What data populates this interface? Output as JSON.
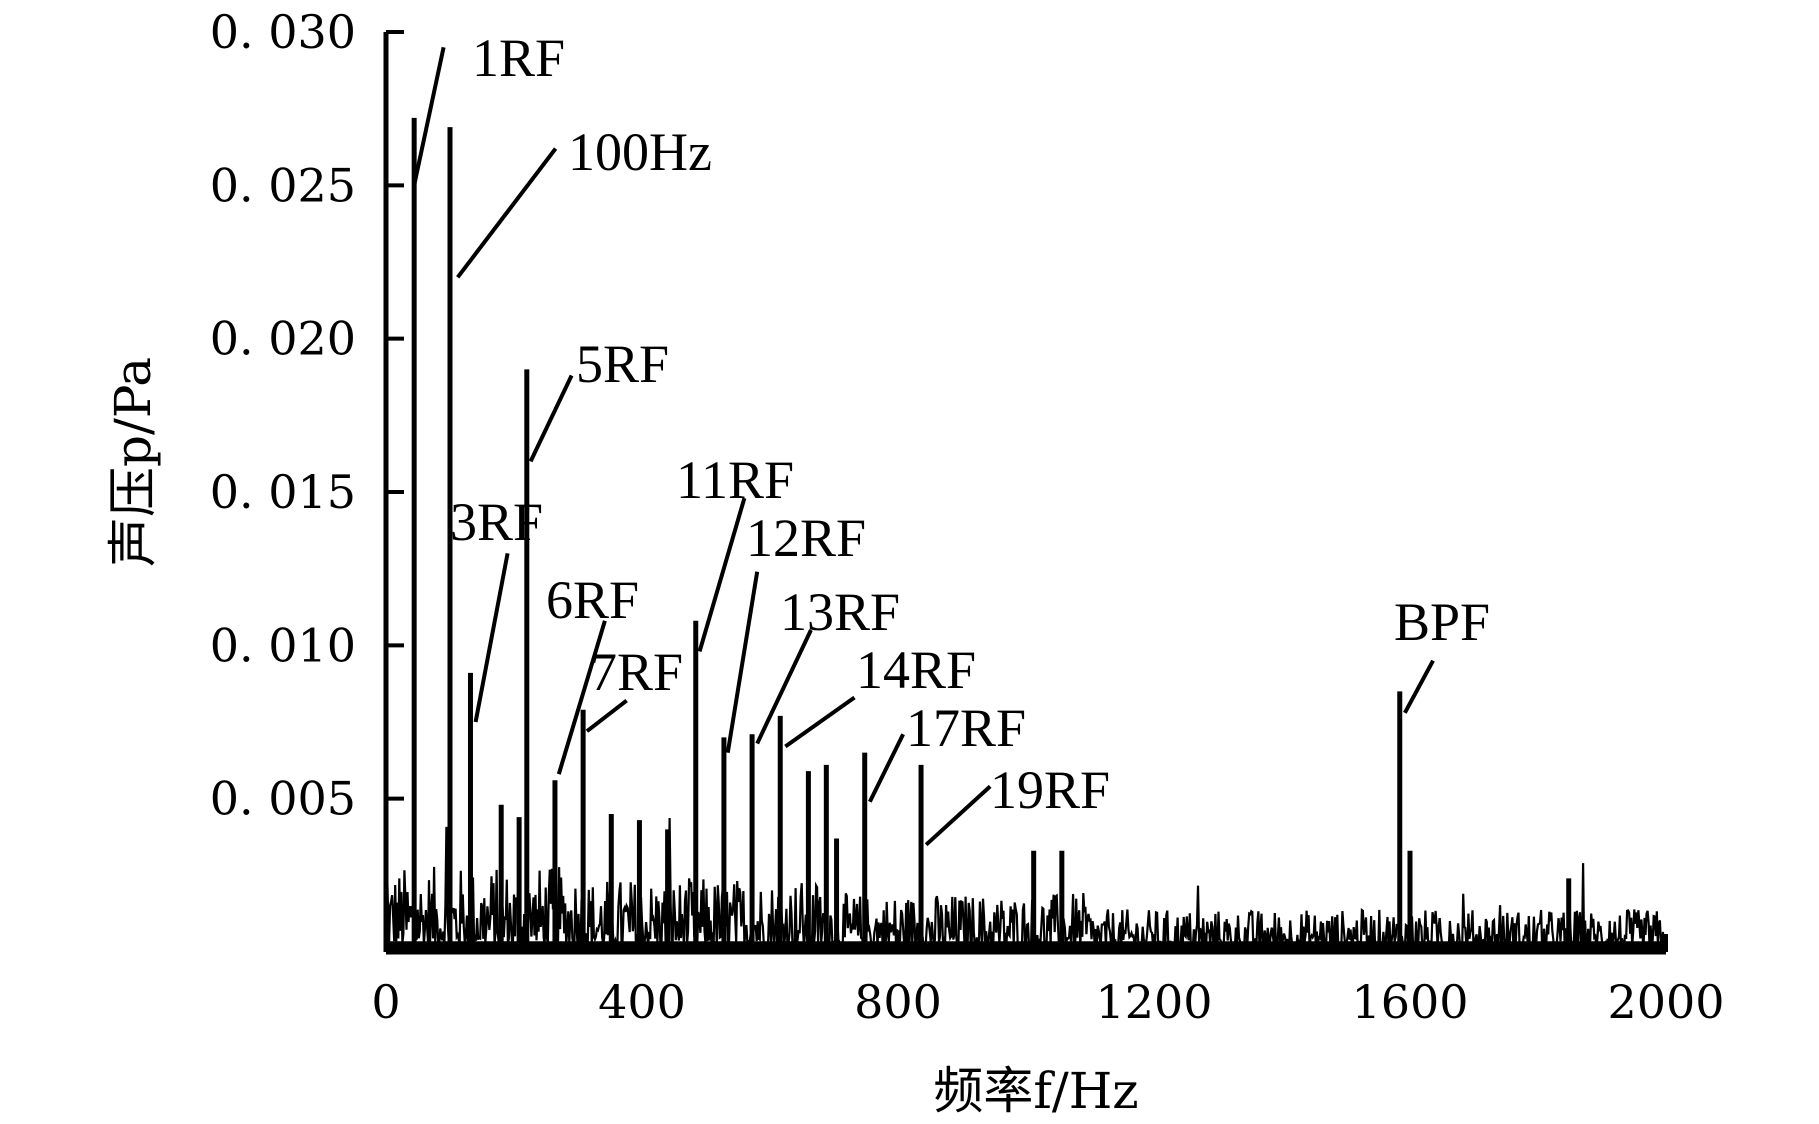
{
  "chart_data": {
    "type": "line",
    "title": "",
    "xlabel": "频率f/Hz",
    "ylabel": "声压p/Pa",
    "xlim": [
      0,
      2000
    ],
    "ylim": [
      0,
      0.03
    ],
    "x_ticks": [
      "0",
      "400",
      "800",
      "1200",
      "1600",
      "2000"
    ],
    "y_ticks": [
      "0.005",
      "0.010",
      "0.015",
      "0.020",
      "0.025",
      "0.030"
    ],
    "grid": false,
    "series_color": "#000000",
    "peaks": [
      {
        "x": 44,
        "y": 0.0272
      },
      {
        "x": 100,
        "y": 0.0269
      },
      {
        "x": 132,
        "y": 0.0091
      },
      {
        "x": 220,
        "y": 0.019
      },
      {
        "x": 264,
        "y": 0.0056
      },
      {
        "x": 308,
        "y": 0.0079
      },
      {
        "x": 484,
        "y": 0.0108
      },
      {
        "x": 528,
        "y": 0.007
      },
      {
        "x": 572,
        "y": 0.0071
      },
      {
        "x": 616,
        "y": 0.0077
      },
      {
        "x": 660,
        "y": 0.0059
      },
      {
        "x": 688,
        "y": 0.0061
      },
      {
        "x": 748,
        "y": 0.0065
      },
      {
        "x": 836,
        "y": 0.0061
      },
      {
        "x": 1584,
        "y": 0.0085
      },
      {
        "x": 1600,
        "y": 0.0033
      },
      {
        "x": 180,
        "y": 0.0048
      },
      {
        "x": 208,
        "y": 0.0044
      },
      {
        "x": 352,
        "y": 0.0045
      },
      {
        "x": 396,
        "y": 0.0043
      },
      {
        "x": 440,
        "y": 0.004
      },
      {
        "x": 704,
        "y": 0.0037
      },
      {
        "x": 1012,
        "y": 0.0033
      },
      {
        "x": 1056,
        "y": 0.0033
      },
      {
        "x": 1848,
        "y": 0.0024
      }
    ],
    "annotations": [
      {
        "text": "1RF",
        "x": 44
      },
      {
        "text": "100Hz",
        "x": 100
      },
      {
        "text": "3RF",
        "x": 132
      },
      {
        "text": "5RF",
        "x": 220
      },
      {
        "text": "6RF",
        "x": 264
      },
      {
        "text": "7RF",
        "x": 308
      },
      {
        "text": "11RF",
        "x": 484
      },
      {
        "text": "12RF",
        "x": 528
      },
      {
        "text": "13RF",
        "x": 572
      },
      {
        "text": "14RF",
        "x": 616
      },
      {
        "text": "17RF",
        "x": 748
      },
      {
        "text": "19RF",
        "x": 836
      },
      {
        "text": "BPF",
        "x": 1584
      }
    ]
  }
}
